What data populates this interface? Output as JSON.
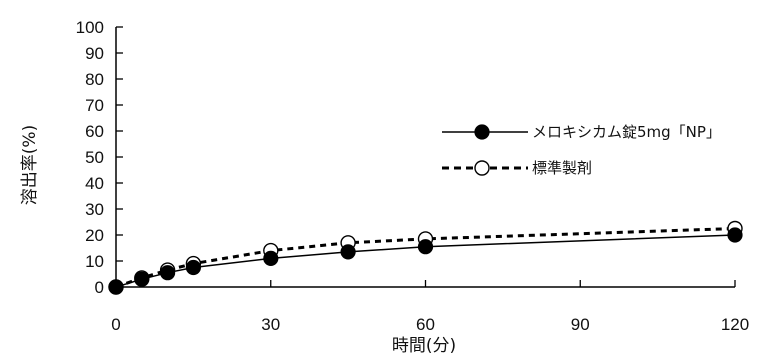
{
  "chart_data": {
    "type": "line",
    "xlabel": "時間(分)",
    "ylabel": "溶出率(%)",
    "xlim": [
      0,
      120
    ],
    "ylim": [
      0,
      100
    ],
    "xticks": [
      0,
      30,
      60,
      90,
      120
    ],
    "yticks": [
      0,
      10,
      20,
      30,
      40,
      50,
      60,
      70,
      80,
      90,
      100
    ],
    "grid": false,
    "legend_position": "right",
    "series": [
      {
        "name": "メロキシカム錠5mg「NP」",
        "marker": "filled-circle",
        "line_style": "solid",
        "x": [
          0,
          5,
          10,
          15,
          30,
          45,
          60,
          120
        ],
        "y": [
          0,
          3,
          5.5,
          7.5,
          11,
          13.5,
          15.5,
          20
        ]
      },
      {
        "name": "標準製剤",
        "marker": "open-circle",
        "line_style": "dotted",
        "x": [
          0,
          5,
          10,
          15,
          30,
          45,
          60,
          120
        ],
        "y": [
          0,
          3.5,
          6.5,
          9,
          14,
          17,
          18.5,
          22.5
        ]
      }
    ]
  }
}
